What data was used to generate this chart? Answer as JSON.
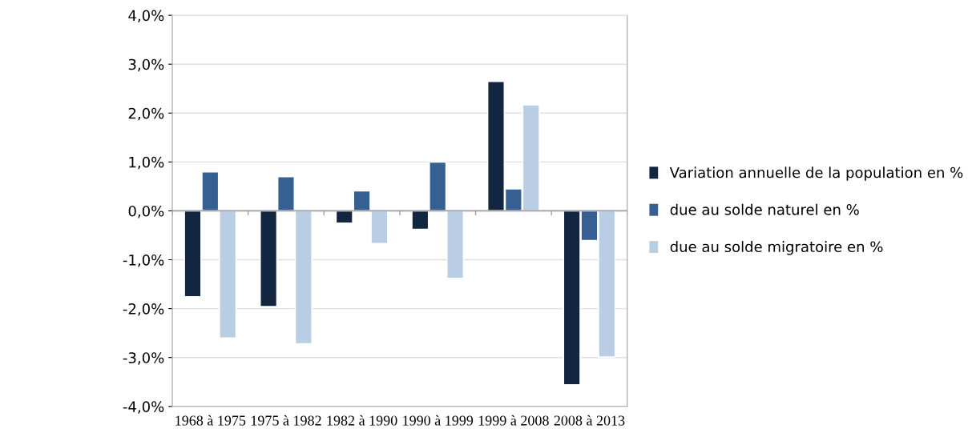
{
  "chart_data": {
    "type": "bar",
    "categories": [
      "1968 à 1975",
      "1975 à 1982",
      "1982 à 1990",
      "1990 à 1999",
      "1999 à 2008",
      "2008 à 2013"
    ],
    "series": [
      {
        "name": "Variation annuelle de la population en %",
        "color": "#132641",
        "values": [
          -1.76,
          -1.96,
          -0.25,
          -0.38,
          2.65,
          -3.56
        ]
      },
      {
        "name": "due au solde naturel en %",
        "color": "#376092",
        "values": [
          0.8,
          0.7,
          0.41,
          1.0,
          0.45,
          -0.61
        ]
      },
      {
        "name": "due au solde migratoire en %",
        "color": "#b9cde5",
        "values": [
          -2.6,
          -2.72,
          -0.67,
          -1.38,
          2.17,
          -2.99
        ]
      }
    ],
    "ylim": [
      -4,
      4
    ],
    "yticks": [
      {
        "value": -4,
        "label": "-4,0%"
      },
      {
        "value": -3,
        "label": "-3,0%"
      },
      {
        "value": -2,
        "label": "-2,0%"
      },
      {
        "value": -1,
        "label": "-1,0%"
      },
      {
        "value": 0,
        "label": "0,0%"
      },
      {
        "value": 1,
        "label": "1,0%"
      },
      {
        "value": 2,
        "label": "2,0%"
      },
      {
        "value": 3,
        "label": "3,0%"
      },
      {
        "value": 4,
        "label": "4,0%"
      }
    ],
    "grid": "y",
    "legend": "right"
  }
}
